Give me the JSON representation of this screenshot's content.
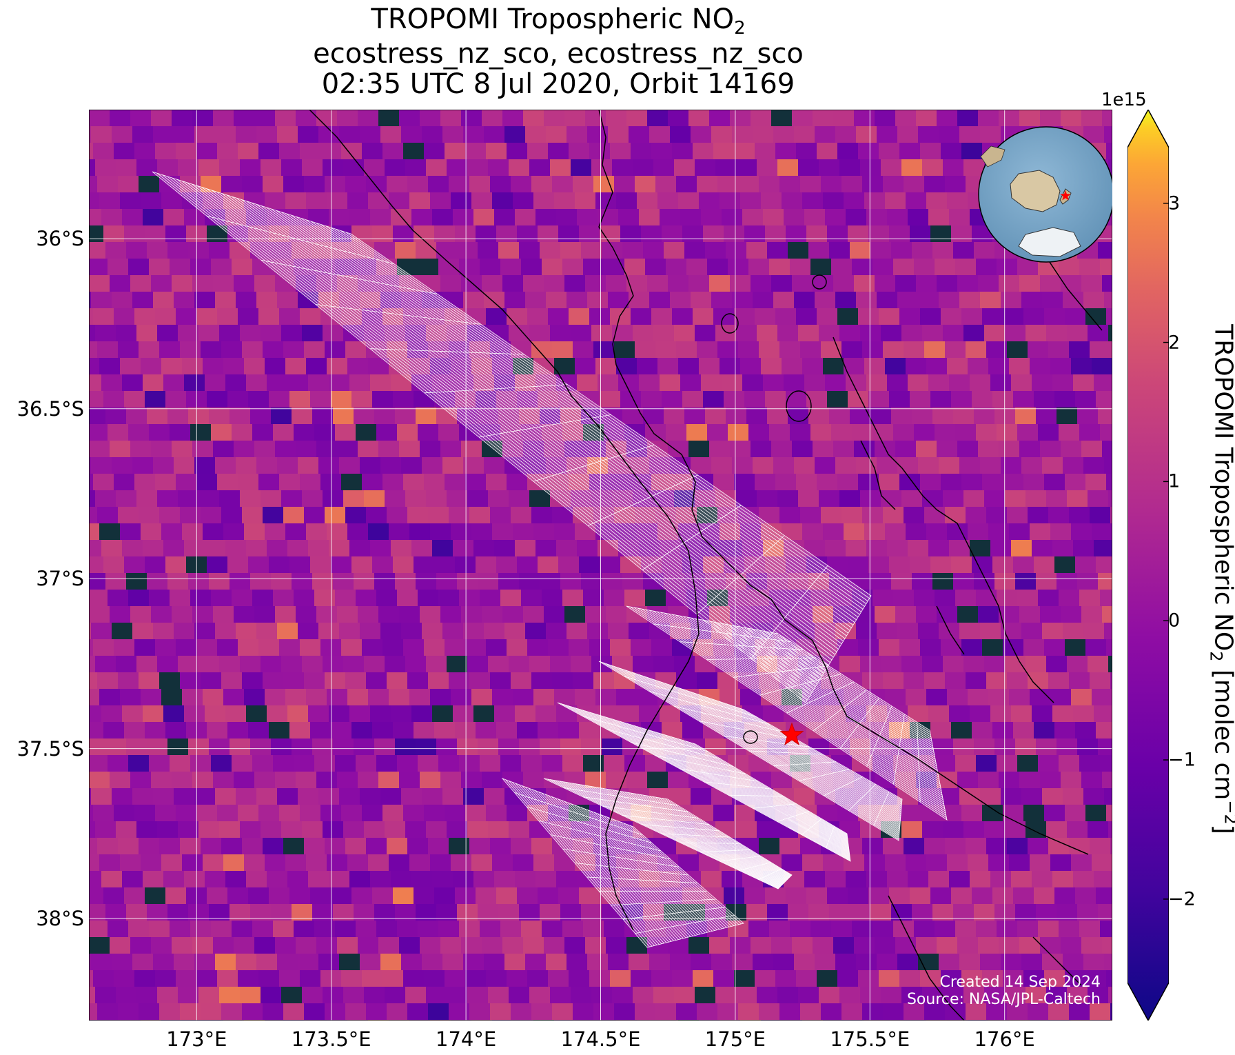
{
  "title": {
    "line1_prefix": "TROPOMI Tropospheric NO",
    "line1_sub": "2",
    "line2": "ecostress_nz_sco, ecostress_nz_sco",
    "line3": "02:35 UTC 8 Jul 2020, Orbit 14169"
  },
  "map": {
    "type": "heatmap",
    "lon_range": [
      172.6,
      176.4
    ],
    "lat_range": [
      -38.3,
      -35.62
    ],
    "x_ticks": [
      "173°E",
      "173.5°E",
      "174°E",
      "174.5°E",
      "175°E",
      "175.5°E",
      "176°E"
    ],
    "x_tick_values": [
      173.0,
      173.5,
      174.0,
      174.5,
      175.0,
      175.5,
      176.0
    ],
    "y_ticks": [
      "36°S",
      "36.5°S",
      "37°S",
      "37.5°S",
      "38°S"
    ],
    "y_tick_values": [
      -36.0,
      -36.5,
      -37.0,
      -37.5,
      -38.0
    ],
    "grid": true,
    "target_marker": {
      "lon": 175.21,
      "lat": -37.46,
      "symbol": "star",
      "color": "#ff0000"
    },
    "inset_globe": {
      "position": "top-right",
      "marker": "star"
    }
  },
  "colorbar": {
    "exponent_label": "1e15",
    "ticks": [
      "3",
      "2",
      "1",
      "0",
      "−1",
      "−2"
    ],
    "tick_values": [
      3,
      2,
      1,
      0,
      -1,
      -2
    ],
    "range": [
      -2.6,
      3.4
    ],
    "colormap": "plasma",
    "label_prefix": "TROPOMI Tropospheric NO",
    "label_sub": "2",
    "label_suffix": " [molec cm",
    "label_sup": "−2",
    "label_end": "]"
  },
  "credit": {
    "line1": "Created 14 Sep 2024",
    "line2": "Source: NASA/JPL-Caltech"
  },
  "colors": {
    "grid": "#ffffff",
    "coast": "#000000",
    "footprint": "#ffffff",
    "marker": "#ff0000"
  }
}
